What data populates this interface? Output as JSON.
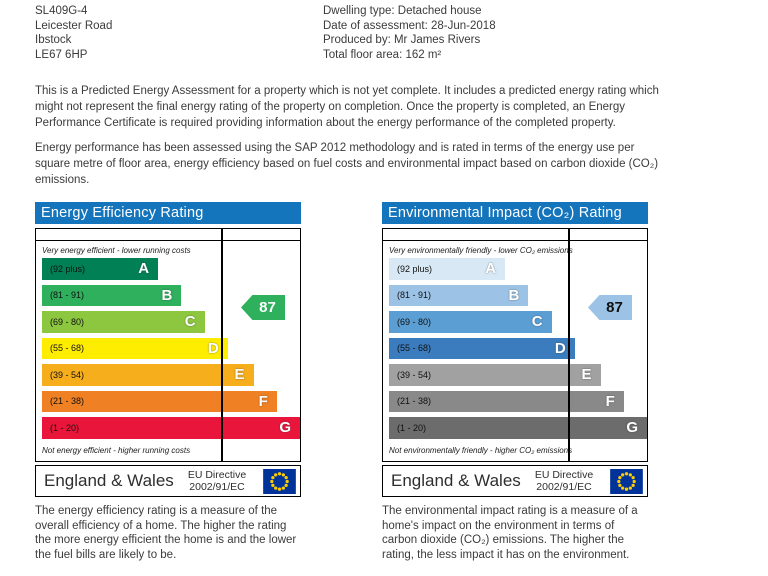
{
  "header": {
    "address": [
      "SL409G-4",
      "Leicester Road",
      "Ibstock",
      "LE67 6HP"
    ],
    "property": [
      "Dwelling type: Detached house",
      "Date of assessment: 28-Jun-2018",
      "Produced by: Mr James Rivers",
      "Total floor area: 162 m²"
    ]
  },
  "paragraphs": [
    "This is a Predicted Energy Assessment for a property which is not yet complete. It includes a predicted energy rating which might not represent the final energy rating of the property on completion. Once the property is completed, an Energy Performance Certificate is required providing information about the energy performance of the completed property.",
    "Energy performance has been assessed using the SAP 2012 methodology and is rated in terms of the energy use per square metre of floor area, energy efficiency based on fuel costs and environmental impact based on carbon dioxide (CO₂) emissions."
  ],
  "charts": [
    {
      "type": "epc-rating-scale",
      "title": "Energy Efficiency Rating",
      "top_label": "Very energy efficient - lower running costs",
      "bottom_label": "Not energy efficient - higher running costs",
      "current_rating": "87",
      "current_band": "B",
      "arrow_color": "#2eb05d",
      "arrow_text_color": "#ffffff",
      "bands": [
        {
          "letter": "A",
          "range": "(92 plus)",
          "color": "#008054",
          "width_pct": 45
        },
        {
          "letter": "B",
          "range": "(81 - 91)",
          "color": "#2eb05d",
          "width_pct": 54
        },
        {
          "letter": "C",
          "range": "(69 - 80)",
          "color": "#8dc63f",
          "width_pct": 63
        },
        {
          "letter": "D",
          "range": "(55 - 68)",
          "color": "#ffed00",
          "width_pct": 72
        },
        {
          "letter": "E",
          "range": "(39 - 54)",
          "color": "#f7ae1d",
          "width_pct": 82
        },
        {
          "letter": "F",
          "range": "(21 - 38)",
          "color": "#ef8023",
          "width_pct": 91
        },
        {
          "letter": "G",
          "range": "(1 - 20)",
          "color": "#e9153b",
          "width_pct": 100
        }
      ],
      "footer_region": "England & Wales",
      "footer_directive": "EU Directive 2002/91/EC",
      "description": "The energy efficiency rating is a measure of the overall efficiency of a home. The higher the rating the more energy efficient the home is and the lower the fuel bills are likely to be."
    },
    {
      "type": "epc-rating-scale",
      "title": "Environmental Impact (CO₂) Rating",
      "top_label": "Very environmentally friendly - lower CO₂ emissions",
      "bottom_label": "Not environmentally friendly - higher CO₂ emissions",
      "current_rating": "87",
      "current_band": "B",
      "arrow_color": "#9cc3e5",
      "arrow_text_color": "#111111",
      "bands": [
        {
          "letter": "A",
          "range": "(92 plus)",
          "color": "#d8e9f5",
          "width_pct": 45
        },
        {
          "letter": "B",
          "range": "(81 - 91)",
          "color": "#9cc3e5",
          "width_pct": 54
        },
        {
          "letter": "C",
          "range": "(69 - 80)",
          "color": "#5b9ed4",
          "width_pct": 63
        },
        {
          "letter": "D",
          "range": "(55 - 68)",
          "color": "#3b7cbf",
          "width_pct": 72
        },
        {
          "letter": "E",
          "range": "(39 - 54)",
          "color": "#a1a1a1",
          "width_pct": 82
        },
        {
          "letter": "F",
          "range": "(21 - 38)",
          "color": "#898989",
          "width_pct": 91
        },
        {
          "letter": "G",
          "range": "(1 - 20)",
          "color": "#6c6c6c",
          "width_pct": 100
        }
      ],
      "footer_region": "England & Wales",
      "footer_directive": "EU Directive 2002/91/EC",
      "description": "The environmental impact rating is a measure of a home's impact on the environment in terms of carbon dioxide (CO₂) emissions. The higher the rating, the less impact it has on the environment."
    }
  ],
  "colors": {
    "chart_header_blue": "#1474bc",
    "eu_flag_blue": "#003399",
    "eu_flag_star_yellow": "#ffcc00"
  }
}
